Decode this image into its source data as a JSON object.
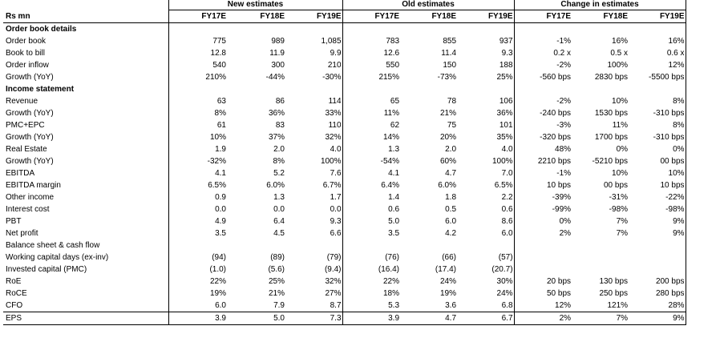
{
  "header": {
    "row_label": "Rs mn",
    "groups": [
      "New estimates",
      "Old estimates",
      "Change in estimates"
    ],
    "years": [
      "FY17E",
      "FY18E",
      "FY19E"
    ]
  },
  "rows": [
    {
      "type": "section",
      "label": "Order book details"
    },
    {
      "label": "Order book",
      "values": [
        "775",
        "989",
        "1,085",
        "783",
        "855",
        "937",
        "-1%",
        "16%",
        "16%"
      ]
    },
    {
      "label": "Book to bill",
      "values": [
        "12.8",
        "11.9",
        "9.9",
        "12.6",
        "11.4",
        "9.3",
        "0.2 x",
        "0.5 x",
        "0.6 x"
      ]
    },
    {
      "label": "Order inflow",
      "values": [
        "540",
        "300",
        "210",
        "550",
        "150",
        "188",
        "-2%",
        "100%",
        "12%"
      ]
    },
    {
      "label": "Growth (YoY)",
      "values": [
        "210%",
        "-44%",
        "-30%",
        "215%",
        "-73%",
        "25%",
        "-560 bps",
        "2830 bps",
        "-5500 bps"
      ]
    },
    {
      "type": "section",
      "label": "Income statement"
    },
    {
      "label": "Revenue",
      "values": [
        "63",
        "86",
        "114",
        "65",
        "78",
        "106",
        "-2%",
        "10%",
        "8%"
      ]
    },
    {
      "label": "Growth (YoY)",
      "values": [
        "8%",
        "36%",
        "33%",
        "11%",
        "21%",
        "36%",
        "-240 bps",
        "1530 bps",
        "-310 bps"
      ]
    },
    {
      "label": "PMC+EPC",
      "values": [
        "61",
        "83",
        "110",
        "62",
        "75",
        "101",
        "-3%",
        "11%",
        "8%"
      ]
    },
    {
      "label": "Growth (YoY)",
      "values": [
        "10%",
        "37%",
        "32%",
        "14%",
        "20%",
        "35%",
        "-320 bps",
        "1700 bps",
        "-310 bps"
      ]
    },
    {
      "label": "Real Estate",
      "values": [
        "1.9",
        "2.0",
        "4.0",
        "1.3",
        "2.0",
        "4.0",
        "48%",
        "0%",
        "0%"
      ]
    },
    {
      "label": "Growth (YoY)",
      "values": [
        "-32%",
        "8%",
        "100%",
        "-54%",
        "60%",
        "100%",
        "2210 bps",
        "-5210 bps",
        "00 bps"
      ]
    },
    {
      "label": "EBITDA",
      "values": [
        "4.1",
        "5.2",
        "7.6",
        "4.1",
        "4.7",
        "7.0",
        "-1%",
        "10%",
        "10%"
      ]
    },
    {
      "label": "EBITDA margin",
      "values": [
        "6.5%",
        "6.0%",
        "6.7%",
        "6.4%",
        "6.0%",
        "6.5%",
        "10 bps",
        "00 bps",
        "10 bps"
      ]
    },
    {
      "label": "Other income",
      "values": [
        "0.9",
        "1.3",
        "1.7",
        "1.4",
        "1.8",
        "2.2",
        "-39%",
        "-31%",
        "-22%"
      ]
    },
    {
      "label": "Interest cost",
      "values": [
        "0.0",
        "0.0",
        "0.0",
        "0.6",
        "0.5",
        "0.6",
        "-99%",
        "-98%",
        "-98%"
      ]
    },
    {
      "label": "PBT",
      "values": [
        "4.9",
        "6.4",
        "9.3",
        "5.0",
        "6.0",
        "8.6",
        "0%",
        "7%",
        "9%"
      ]
    },
    {
      "label": "Net profit",
      "values": [
        "3.5",
        "4.5",
        "6.6",
        "3.5",
        "4.2",
        "6.0",
        "2%",
        "7%",
        "9%"
      ]
    },
    {
      "type": "section-plain",
      "label": "Balance sheet & cash flow"
    },
    {
      "label": "Working capital days (ex-inv)",
      "values": [
        "(94)",
        "(89)",
        "(79)",
        "(76)",
        "(66)",
        "(57)",
        "",
        "",
        ""
      ]
    },
    {
      "label": "Invested capital (PMC)",
      "values": [
        "(1.0)",
        "(5.6)",
        "(9.4)",
        "(16.4)",
        "(17.4)",
        "(20.7)",
        "",
        "",
        ""
      ]
    },
    {
      "label": "RoE",
      "values": [
        "22%",
        "25%",
        "32%",
        "22%",
        "24%",
        "30%",
        "20 bps",
        "130 bps",
        "200 bps"
      ]
    },
    {
      "label": "RoCE",
      "values": [
        "19%",
        "21%",
        "27%",
        "18%",
        "19%",
        "24%",
        "50 bps",
        "250 bps",
        "280 bps"
      ]
    },
    {
      "label": "CFO",
      "values": [
        "6.0",
        "7.9",
        "8.7",
        "5.3",
        "3.6",
        "6.8",
        "12%",
        "121%",
        "28%"
      ]
    },
    {
      "label": "EPS",
      "values": [
        "3.9",
        "5.0",
        "7.3",
        "3.9",
        "4.7",
        "6.7",
        "2%",
        "7%",
        "9%"
      ],
      "boxed": true
    }
  ]
}
